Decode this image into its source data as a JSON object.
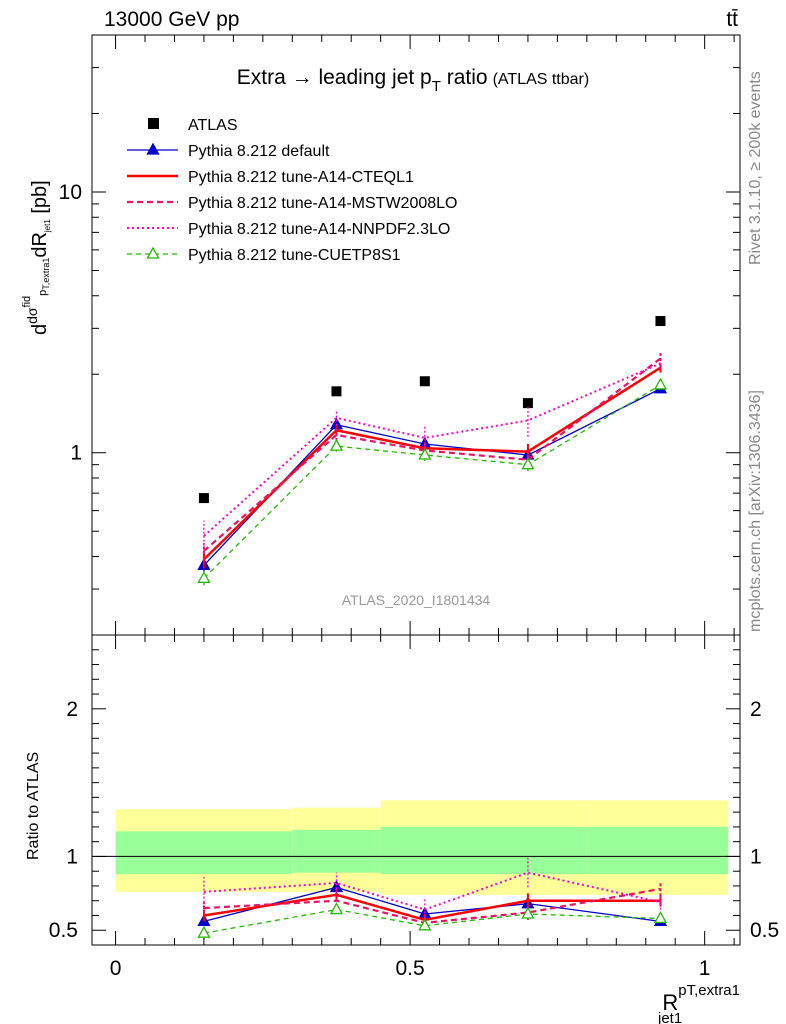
{
  "header": {
    "energy_label": "13000 GeV pp",
    "process_label": "tt̄"
  },
  "side_labels": {
    "rivet": "Rivet 3.1.10, ≥ 200k events",
    "mcplots": "mcplots.cern.ch [arXiv:1306.3436]"
  },
  "chart_data": [
    {
      "type": "line",
      "title": "Extra → leading jet pT ratio (ATLAS ttbar)",
      "title_main": "Extra → leading jet p",
      "title_sub": "T",
      "title_tail": " ratio",
      "title_note": "(ATLAS ttbar)",
      "ylabel": "dσ^fid / dR_{jet1}^{pT,extra1} [pb]",
      "yscale": "log",
      "ylim": [
        0.2,
        40
      ],
      "yticks": [
        "1",
        "10"
      ],
      "xlim": [
        -0.04,
        1.06
      ],
      "watermark": "ATLAS_2020_I1801434",
      "legend_position": "top-left",
      "x": [
        0.15,
        0.375,
        0.525,
        0.7,
        0.925
      ],
      "series": [
        {
          "name": "ATLAS",
          "color": "#000000",
          "style": "data",
          "values": [
            0.67,
            1.72,
            1.88,
            1.55,
            3.2
          ],
          "err": [
            0.02,
            0.03,
            0.03,
            0.03,
            0.04
          ]
        },
        {
          "name": "Pythia 8.212 default",
          "color": "#0000cc",
          "style": "solid-thin",
          "marker": "triangle-filled",
          "values": [
            0.37,
            1.28,
            1.08,
            0.98,
            1.76
          ],
          "err": [
            0.02,
            0.05,
            0.05,
            0.05,
            0.07
          ]
        },
        {
          "name": "Pythia 8.212 tune-A14-CTEQL1",
          "color": "#ff0000",
          "style": "solid-thick",
          "values": [
            0.39,
            1.22,
            1.04,
            1.01,
            2.12
          ],
          "err": [
            0.03,
            0.06,
            0.06,
            0.07,
            0.09
          ]
        },
        {
          "name": "Pythia 8.212 tune-A14-MSTW2008LO",
          "color": "#ee1166",
          "style": "dashed",
          "values": [
            0.42,
            1.17,
            1.02,
            0.94,
            2.3
          ],
          "err": [
            0.03,
            0.06,
            0.06,
            0.07,
            0.15
          ]
        },
        {
          "name": "Pythia 8.212 tune-A14-NNPDF2.3LO",
          "color": "#ff00cc",
          "style": "dotted",
          "values": [
            0.48,
            1.36,
            1.14,
            1.33,
            2.2
          ],
          "err": [
            0.07,
            0.09,
            0.14,
            0.18,
            0.1
          ]
        },
        {
          "name": "Pythia 8.212 tune-CUETP8S1",
          "color": "#22bb00",
          "style": "dashed-thin",
          "marker": "triangle-open",
          "values": [
            0.33,
            1.06,
            0.98,
            0.9,
            1.82
          ],
          "err": [
            0.02,
            0.05,
            0.05,
            0.05,
            0.07
          ]
        }
      ]
    },
    {
      "type": "line",
      "ylabel": "Ratio to ATLAS",
      "ylim": [
        0.4,
        2.5
      ],
      "yticks": [
        "0.5",
        "1",
        "2"
      ],
      "xticks": [
        "0",
        "0.5",
        "1"
      ],
      "xlim": [
        -0.04,
        1.06
      ],
      "xlabel": "R_jet1^{pT,extra1}",
      "xlabel_main": "R",
      "xlabel_sup": "pT,extra1",
      "xlabel_sub": "jet1",
      "bands": [
        {
          "edges": [
            0.0,
            0.3,
            0.45,
            0.8,
            1.04
          ],
          "inner_lo": [
            0.88,
            0.89,
            0.88,
            0.88
          ],
          "inner_hi": [
            1.17,
            1.18,
            1.2,
            1.2
          ],
          "outer_lo": [
            0.76,
            0.76,
            0.74,
            0.74
          ],
          "outer_hi": [
            1.32,
            1.33,
            1.38,
            1.38
          ],
          "inner_color": "#99ff99",
          "outer_color": "#ffff99"
        }
      ],
      "x": [
        0.15,
        0.375,
        0.525,
        0.7,
        0.925
      ],
      "series": [
        {
          "name": "Pythia 8.212 default",
          "color": "#0000cc",
          "style": "solid-thin",
          "marker": "triangle-filled",
          "values": [
            0.56,
            0.79,
            0.61,
            0.68,
            0.56
          ],
          "err": [
            0.03,
            0.03,
            0.03,
            0.04,
            0.03
          ]
        },
        {
          "name": "Pythia 8.212 tune-A14-CTEQL1",
          "color": "#ff0000",
          "style": "solid-thick",
          "values": [
            0.6,
            0.74,
            0.57,
            0.7,
            0.7
          ],
          "err": [
            0.04,
            0.04,
            0.04,
            0.05,
            0.04
          ]
        },
        {
          "name": "Pythia 8.212 tune-A14-MSTW2008LO",
          "color": "#ee1166",
          "style": "dashed",
          "values": [
            0.65,
            0.7,
            0.55,
            0.62,
            0.78
          ],
          "err": [
            0.04,
            0.04,
            0.04,
            0.05,
            0.05
          ]
        },
        {
          "name": "Pythia 8.212 tune-A14-NNPDF2.3LO",
          "color": "#ff00cc",
          "style": "dotted",
          "values": [
            0.76,
            0.82,
            0.64,
            0.89,
            0.69
          ],
          "err": [
            0.1,
            0.07,
            0.08,
            0.1,
            0.05
          ]
        },
        {
          "name": "Pythia 8.212 tune-CUETP8S1",
          "color": "#22bb00",
          "style": "dashed-thin",
          "marker": "triangle-open",
          "values": [
            0.48,
            0.64,
            0.53,
            0.61,
            0.58
          ],
          "err": [
            0.04,
            0.03,
            0.03,
            0.03,
            0.03
          ]
        }
      ]
    }
  ]
}
